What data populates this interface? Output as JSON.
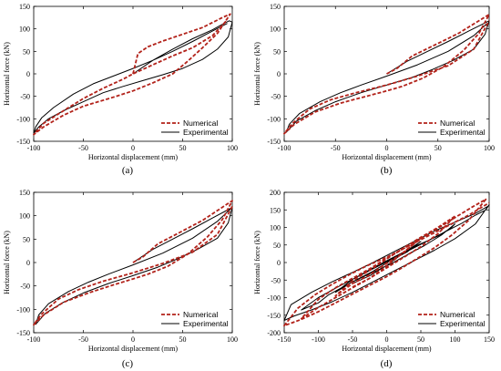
{
  "chart_data": [
    {
      "panel_label": "(a)",
      "type": "line",
      "xlabel": "Horizontal displacement (mm)",
      "ylabel": "Horizontal force (kN)",
      "xlim": [
        -100,
        100
      ],
      "ylim": [
        -150,
        150
      ],
      "xticks": [
        -100,
        -50,
        0,
        50,
        100
      ],
      "yticks": [
        -150,
        -100,
        -50,
        0,
        50,
        100,
        150
      ],
      "grid": false,
      "legend_position": "bottom-right",
      "series": [
        {
          "name": "Numerical",
          "color": "#b2221a",
          "dash": true,
          "x": [
            0,
            5,
            15,
            30,
            50,
            70,
            90,
            98,
            85,
            70,
            55,
            40,
            20,
            0,
            -20,
            -50,
            -70,
            -90,
            -100,
            -90,
            -70,
            -50,
            -30,
            -10,
            0,
            20,
            40,
            60,
            80,
            95
          ],
          "y": [
            0,
            45,
            60,
            73,
            88,
            103,
            125,
            133,
            90,
            58,
            28,
            0,
            -20,
            -38,
            -52,
            -72,
            -92,
            -118,
            -135,
            -110,
            -82,
            -55,
            -32,
            -12,
            0,
            20,
            40,
            58,
            85,
            120
          ]
        },
        {
          "name": "Experimental",
          "color": "#000000",
          "dash": false,
          "x": [
            0,
            20,
            40,
            60,
            80,
            90,
            97,
            100,
            96,
            85,
            70,
            50,
            30,
            10,
            -10,
            -30,
            -50,
            -70,
            -85,
            -95,
            -100,
            -98,
            -92,
            -80,
            -60,
            -40,
            -20,
            0,
            20,
            40,
            60,
            80,
            95
          ],
          "y": [
            0,
            30,
            55,
            78,
            98,
            110,
            118,
            115,
            82,
            55,
            32,
            12,
            -2,
            -15,
            -28,
            -42,
            -62,
            -82,
            -100,
            -118,
            -132,
            -118,
            -98,
            -75,
            -45,
            -22,
            -5,
            12,
            30,
            50,
            72,
            95,
            112
          ]
        }
      ]
    },
    {
      "panel_label": "(b)",
      "type": "line",
      "xlabel": "Horizontal displacement (mm)",
      "ylabel": "Horizontal force (kN)",
      "xlim": [
        -100,
        100
      ],
      "ylim": [
        -150,
        150
      ],
      "xticks": [
        -100,
        -50,
        0,
        50,
        100
      ],
      "yticks": [
        -150,
        -100,
        -50,
        0,
        50,
        100,
        150
      ],
      "grid": false,
      "legend_position": "bottom-right",
      "series": [
        {
          "name": "Numerical",
          "color": "#b2221a",
          "dash": true,
          "x": [
            0,
            10,
            25,
            45,
            70,
            95,
            100,
            90,
            75,
            55,
            35,
            15,
            0,
            -20,
            -45,
            -70,
            -90,
            -100,
            -92,
            -75,
            -55,
            -30,
            0,
            30,
            60,
            85,
            100
          ],
          "y": [
            0,
            12,
            40,
            62,
            90,
            125,
            132,
            90,
            52,
            15,
            -10,
            -28,
            -38,
            -50,
            -65,
            -85,
            -112,
            -133,
            -110,
            -78,
            -58,
            -42,
            -25,
            -5,
            18,
            55,
            118
          ]
        },
        {
          "name": "Experimental",
          "color": "#000000",
          "dash": false,
          "x": [
            0,
            20,
            40,
            60,
            80,
            95,
            100,
            96,
            85,
            65,
            45,
            25,
            0,
            -25,
            -50,
            -70,
            -88,
            -98,
            -95,
            -85,
            -65,
            -45,
            -25,
            0,
            30,
            60,
            85,
            98
          ],
          "y": [
            0,
            28,
            50,
            72,
            95,
            112,
            118,
            88,
            55,
            30,
            10,
            -8,
            -25,
            -42,
            -62,
            -82,
            -105,
            -130,
            -112,
            -88,
            -62,
            -42,
            -25,
            -5,
            20,
            50,
            85,
            112
          ]
        }
      ]
    },
    {
      "panel_label": "(c)",
      "type": "line",
      "xlabel": "Horizontal displacement (mm)",
      "ylabel": "Horizontal force (kN)",
      "xlim": [
        -100,
        100
      ],
      "ylim": [
        -150,
        150
      ],
      "xticks": [
        -100,
        -50,
        0,
        50,
        100
      ],
      "yticks": [
        -150,
        -100,
        -50,
        0,
        50,
        100,
        150
      ],
      "grid": false,
      "legend_position": "bottom-right",
      "series": [
        {
          "name": "Numerical",
          "color": "#b2221a",
          "dash": true,
          "x": [
            0,
            10,
            25,
            45,
            70,
            95,
            100,
            90,
            75,
            55,
            35,
            15,
            0,
            -20,
            -45,
            -70,
            -90,
            -100,
            -92,
            -75,
            -55,
            -30,
            0,
            30,
            60,
            85,
            100
          ],
          "y": [
            0,
            12,
            40,
            62,
            90,
            125,
            132,
            92,
            55,
            18,
            -8,
            -25,
            -35,
            -48,
            -65,
            -85,
            -112,
            -133,
            -110,
            -78,
            -58,
            -40,
            -22,
            -2,
            22,
            60,
            120
          ]
        },
        {
          "name": "Experimental",
          "color": "#000000",
          "dash": false,
          "x": [
            0,
            20,
            40,
            60,
            80,
            95,
            100,
            96,
            85,
            65,
            45,
            25,
            0,
            -25,
            -50,
            -70,
            -88,
            -98,
            -95,
            -85,
            -65,
            -45,
            -25,
            0,
            30,
            60,
            85,
            98
          ],
          "y": [
            0,
            28,
            50,
            72,
            95,
            112,
            118,
            85,
            52,
            28,
            8,
            -10,
            -28,
            -45,
            -65,
            -85,
            -108,
            -132,
            -112,
            -88,
            -62,
            -42,
            -25,
            -5,
            20,
            52,
            88,
            114
          ]
        }
      ]
    },
    {
      "panel_label": "(d)",
      "type": "line",
      "xlabel": "Horizontal displacement (mm)",
      "ylabel": "Horizontal force (kN)",
      "xlim": [
        -150,
        150
      ],
      "ylim": [
        -200,
        200
      ],
      "xticks": [
        -150,
        -100,
        -50,
        0,
        50,
        100,
        150
      ],
      "yticks": [
        -200,
        -150,
        -100,
        -50,
        0,
        50,
        100,
        150,
        200
      ],
      "grid": false,
      "legend_position": "bottom-right",
      "series": [
        {
          "name": "Numerical",
          "color": "#b2221a",
          "dash": true,
          "x": [
            -50,
            -25,
            0,
            25,
            50,
            25,
            0,
            -25,
            -50,
            -75,
            -50,
            -25,
            0,
            25,
            50,
            75,
            100,
            75,
            50,
            25,
            0,
            -25,
            -50,
            -75,
            -100,
            -125,
            -100,
            -75,
            -50,
            -25,
            0,
            25,
            50,
            75,
            100,
            125,
            145,
            120,
            95,
            70,
            45,
            20,
            0,
            -25,
            -50,
            -75,
            -100,
            -125,
            -150,
            -130,
            -105,
            -80,
            -55,
            -30,
            0,
            30,
            60,
            90,
            120,
            150
          ],
          "y": [
            -70,
            -45,
            -10,
            30,
            70,
            28,
            -2,
            -35,
            -60,
            -95,
            -52,
            -22,
            10,
            42,
            72,
            100,
            132,
            82,
            45,
            15,
            -15,
            -45,
            -72,
            -100,
            -128,
            -160,
            -105,
            -72,
            -45,
            -18,
            12,
            40,
            68,
            98,
            128,
            158,
            180,
            120,
            78,
            42,
            12,
            -18,
            -40,
            -65,
            -90,
            -115,
            -140,
            -162,
            -180,
            -130,
            -92,
            -62,
            -35,
            -10,
            15,
            45,
            75,
            105,
            135,
            170
          ]
        },
        {
          "name": "Experimental",
          "color": "#000000",
          "dash": false,
          "x": [
            -50,
            -25,
            0,
            25,
            50,
            30,
            5,
            -20,
            -50,
            -75,
            -50,
            -20,
            10,
            40,
            75,
            95,
            100,
            80,
            55,
            30,
            5,
            -25,
            -55,
            -85,
            -100,
            -125,
            -100,
            -70,
            -40,
            -10,
            20,
            50,
            80,
            110,
            130,
            145,
            150,
            130,
            100,
            70,
            40,
            10,
            -20,
            -50,
            -80,
            -110,
            -135,
            -150,
            -140,
            -110,
            -80,
            -50,
            -20,
            10,
            40,
            70,
            100,
            130,
            148
          ],
          "y": [
            -60,
            -38,
            -8,
            28,
            60,
            30,
            5,
            -25,
            -55,
            -85,
            -48,
            -15,
            15,
            45,
            75,
            100,
            110,
            78,
            48,
            22,
            -5,
            -32,
            -60,
            -92,
            -115,
            -135,
            -100,
            -68,
            -38,
            -8,
            22,
            52,
            82,
            112,
            135,
            150,
            165,
            110,
            68,
            35,
            5,
            -25,
            -55,
            -85,
            -112,
            -135,
            -152,
            -165,
            -120,
            -85,
            -55,
            -28,
            0,
            30,
            60,
            90,
            115,
            140,
            160
          ]
        }
      ]
    }
  ]
}
